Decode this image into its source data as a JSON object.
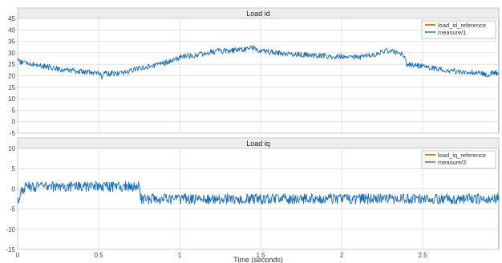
{
  "chart_data": [
    {
      "type": "line",
      "title": "Load id",
      "xlim": [
        0,
        2.97
      ],
      "ylim": [
        -5,
        45
      ],
      "yticks": [
        "-5",
        "0",
        "5",
        "10",
        "15",
        "20",
        "25",
        "30",
        "35",
        "40",
        "45"
      ],
      "xticks": [],
      "grid": true,
      "legend_position": "top-right",
      "series": [
        {
          "name": "load_id_reference",
          "color": "#e07b1a",
          "points": [
            [
              0,
              0
            ]
          ]
        },
        {
          "name": "measure/1",
          "color": "#1f6fb5",
          "noise": 1.2,
          "points": [
            [
              0,
              27
            ],
            [
              0.02,
              26
            ],
            [
              0.1,
              25
            ],
            [
              0.25,
              23
            ],
            [
              0.35,
              22
            ],
            [
              0.45,
              21.5
            ],
            [
              0.5,
              21
            ],
            [
              0.52,
              19.5
            ],
            [
              0.54,
              21
            ],
            [
              0.6,
              21
            ],
            [
              0.68,
              21.5
            ],
            [
              0.72,
              23
            ],
            [
              0.8,
              24
            ],
            [
              0.88,
              25
            ],
            [
              0.95,
              26.5
            ],
            [
              1.0,
              28
            ],
            [
              1.1,
              29
            ],
            [
              1.2,
              30.5
            ],
            [
              1.3,
              31
            ],
            [
              1.4,
              31.5
            ],
            [
              1.45,
              32.5
            ],
            [
              1.5,
              31
            ],
            [
              1.6,
              30
            ],
            [
              1.7,
              29.5
            ],
            [
              1.8,
              29
            ],
            [
              1.9,
              28.5
            ],
            [
              2.0,
              28.5
            ],
            [
              2.1,
              28
            ],
            [
              2.2,
              29
            ],
            [
              2.25,
              30.5
            ],
            [
              2.3,
              31
            ],
            [
              2.35,
              30
            ],
            [
              2.38,
              29.5
            ],
            [
              2.4,
              25
            ],
            [
              2.5,
              24
            ],
            [
              2.6,
              23
            ],
            [
              2.7,
              22
            ],
            [
              2.8,
              21.5
            ],
            [
              2.88,
              21
            ],
            [
              2.9,
              19.5
            ],
            [
              2.93,
              21.5
            ],
            [
              2.97,
              21
            ]
          ]
        }
      ]
    },
    {
      "type": "line",
      "title": "Load iq",
      "xlabel": "Time (seconds)",
      "xlim": [
        0,
        2.97
      ],
      "ylim": [
        -15,
        10
      ],
      "yticks": [
        "-15",
        "-10",
        "-5",
        "0",
        "5",
        "10"
      ],
      "xticks": [
        "0",
        "0.5",
        "1",
        "1.5",
        "2",
        "2.5"
      ],
      "grid": true,
      "legend_position": "top-right",
      "series": [
        {
          "name": "load_iq_reference",
          "color": "#e07b1a",
          "points": [
            [
              0,
              0
            ]
          ]
        },
        {
          "name": "measure/2",
          "color": "#1f6fb5",
          "noise": 1.3,
          "points": [
            [
              0,
              -3
            ],
            [
              0.02,
              -1
            ],
            [
              0.05,
              0.5
            ],
            [
              0.2,
              0.5
            ],
            [
              0.4,
              0.5
            ],
            [
              0.6,
              0.5
            ],
            [
              0.75,
              0.5
            ],
            [
              0.76,
              -2.5
            ],
            [
              1.0,
              -2.5
            ],
            [
              1.5,
              -2.5
            ],
            [
              2.0,
              -2.5
            ],
            [
              2.5,
              -2.5
            ],
            [
              2.97,
              -2.5
            ]
          ]
        }
      ]
    }
  ]
}
